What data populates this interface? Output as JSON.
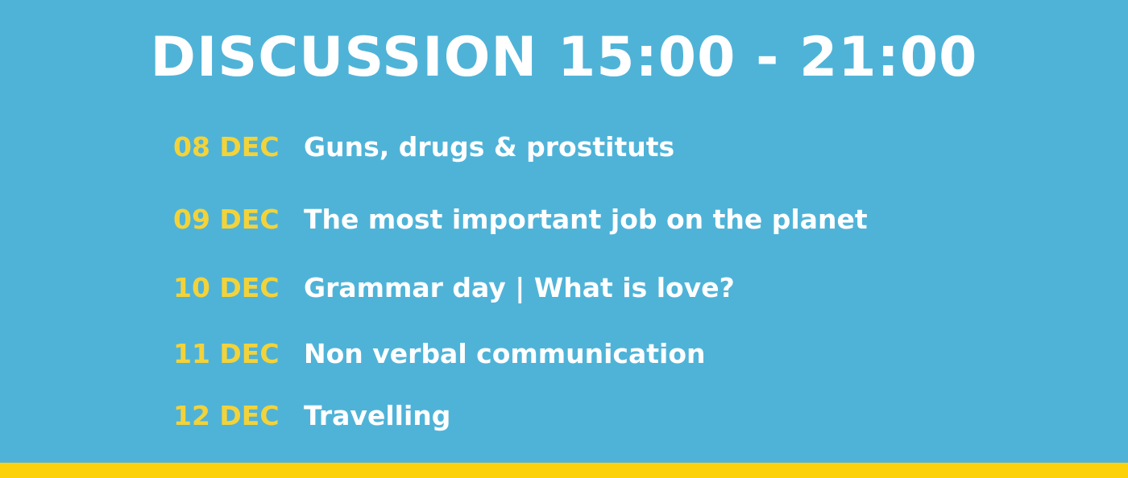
{
  "colors": {
    "background": "#4fb3d8",
    "title": "#ffffff",
    "date": "#f3d33a",
    "topic": "#ffffff",
    "bottom_bar": "#fdd10a"
  },
  "title": "DISCUSSION 15:00 - 21:00",
  "schedule": [
    {
      "date": "08 DEC",
      "topic": "Guns, drugs & prostituts"
    },
    {
      "date": "09 DEC",
      "topic": "The most important job on the planet"
    },
    {
      "date": "10 DEC",
      "topic": "Grammar day | What is love?"
    },
    {
      "date": "11 DEC",
      "topic": "Non verbal communication"
    },
    {
      "date": "12 DEC",
      "topic": "Travelling"
    }
  ]
}
